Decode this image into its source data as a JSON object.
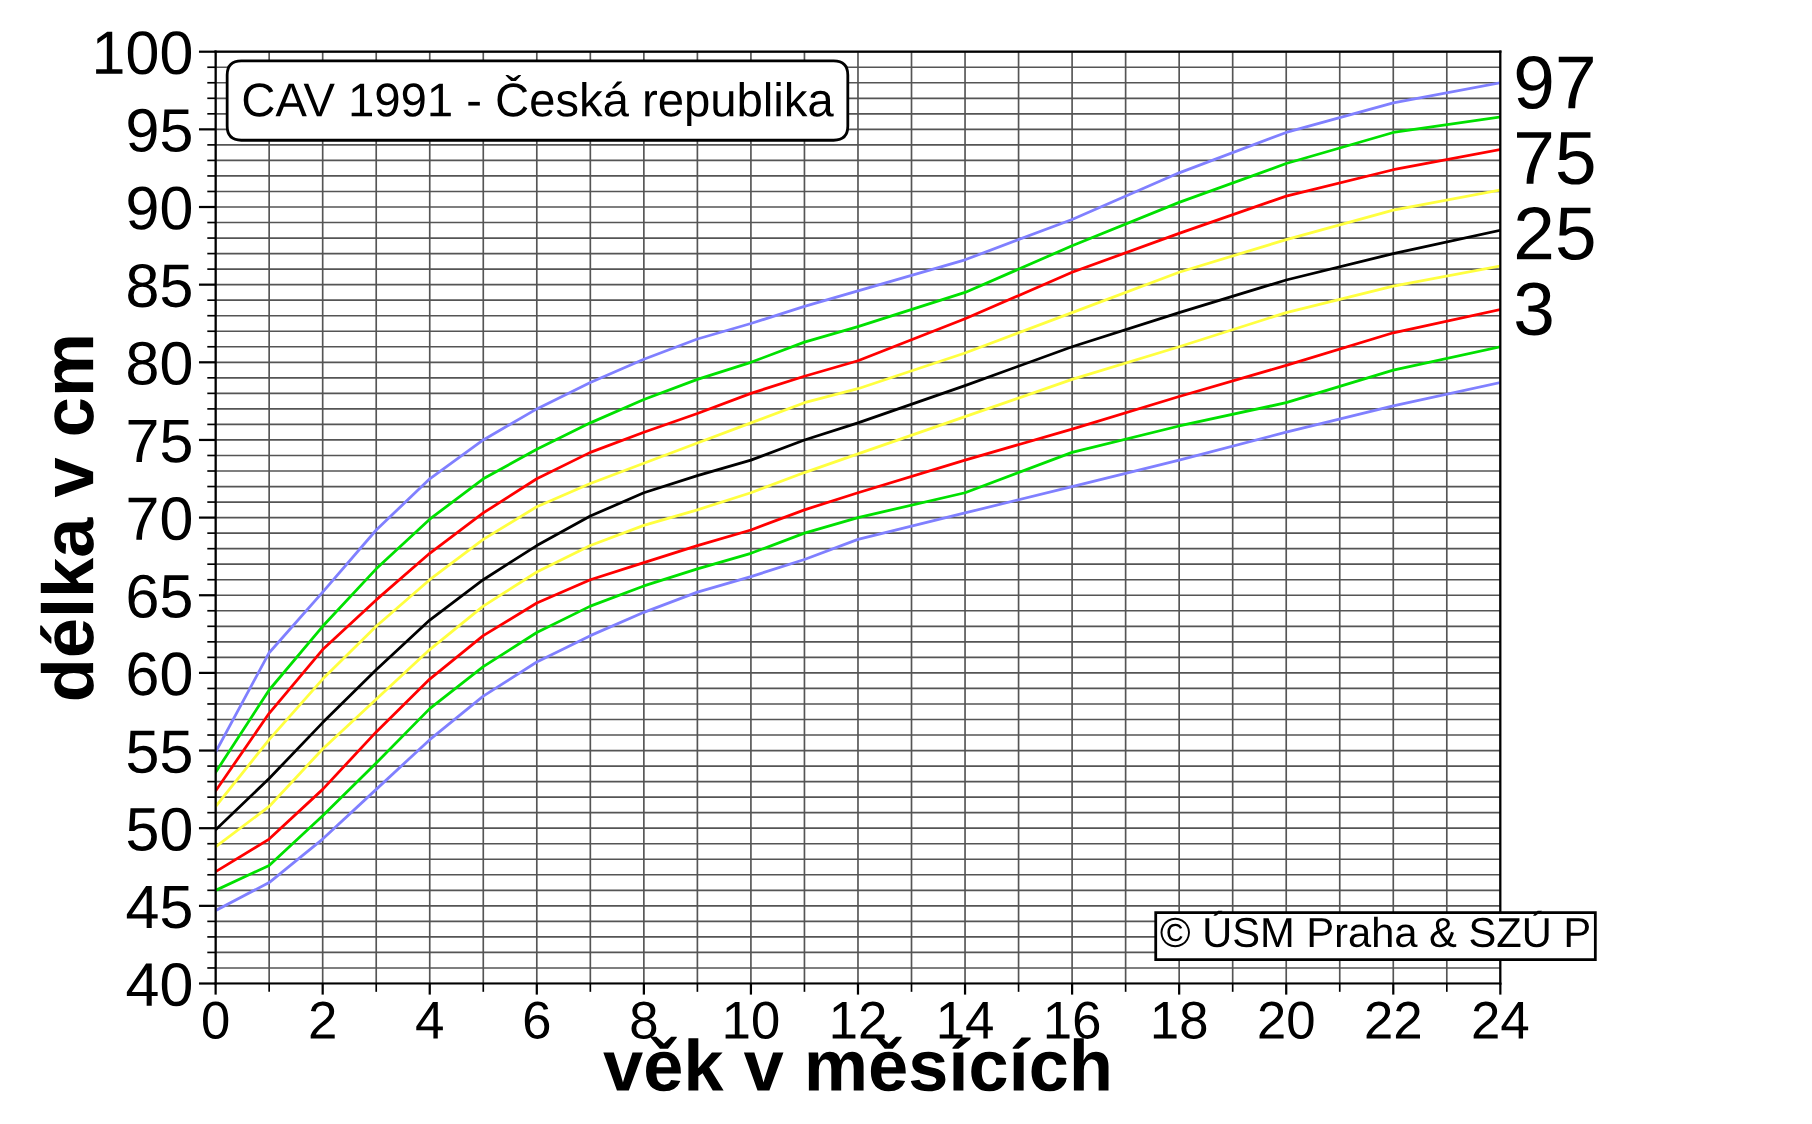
{
  "chart_data": {
    "type": "line",
    "title": "CAV 1991 - Česká republika",
    "xlabel": "věk v měsících",
    "ylabel": "délka v cm",
    "x": [
      0,
      1,
      2,
      3,
      4,
      5,
      6,
      7,
      8,
      9,
      10,
      11,
      12,
      14,
      16,
      18,
      20,
      22,
      24
    ],
    "series": [
      {
        "color": "#8080ff",
        "values": [
          54.9,
          61.3,
          65.2,
          69.2,
          72.5,
          75.0,
          77.0,
          78.7,
          80.2,
          81.5,
          82.5,
          83.6,
          84.6,
          86.6,
          89.2,
          92.2,
          94.8,
          96.7,
          98.0
        ]
      },
      {
        "color": "#00e000",
        "values": [
          53.6,
          58.9,
          63.0,
          66.7,
          69.9,
          72.5,
          74.4,
          76.1,
          77.6,
          78.9,
          80.0,
          81.3,
          82.3,
          84.5,
          87.5,
          90.3,
          92.8,
          94.8,
          95.8
        ]
      },
      {
        "color": "#ff0000",
        "values": [
          52.4,
          57.4,
          61.5,
          64.7,
          67.7,
          70.3,
          72.5,
          74.2,
          75.5,
          76.7,
          78.0,
          79.1,
          80.1,
          82.8,
          85.8,
          88.3,
          90.7,
          92.4,
          93.7
        ]
      },
      {
        "color": "#ffff40",
        "values": [
          51.4,
          55.7,
          59.6,
          63.0,
          66.0,
          68.6,
          70.7,
          72.2,
          73.5,
          74.8,
          76.1,
          77.4,
          78.3,
          80.6,
          83.2,
          85.8,
          87.9,
          89.8,
          91.1
        ]
      },
      {
        "color": "#000000",
        "values": [
          49.9,
          53.2,
          56.8,
          60.2,
          63.4,
          66.0,
          68.2,
          70.1,
          71.6,
          72.7,
          73.7,
          75.0,
          76.1,
          78.5,
          81.0,
          83.2,
          85.3,
          87.0,
          88.5
        ]
      },
      {
        "color": "#ffff40",
        "values": [
          48.8,
          51.4,
          55.1,
          58.3,
          61.5,
          64.3,
          66.5,
          68.2,
          69.5,
          70.5,
          71.6,
          72.9,
          74.1,
          76.5,
          78.9,
          81.0,
          83.2,
          84.9,
          86.2
        ]
      },
      {
        "color": "#ff0000",
        "values": [
          47.2,
          49.3,
          52.5,
          56.2,
          59.6,
          62.4,
          64.5,
          66.0,
          67.1,
          68.2,
          69.2,
          70.5,
          71.6,
          73.7,
          75.7,
          77.8,
          79.8,
          81.9,
          83.4
        ]
      },
      {
        "color": "#00e000",
        "values": [
          46.0,
          47.6,
          50.8,
          54.2,
          57.7,
          60.4,
          62.6,
          64.3,
          65.6,
          66.7,
          67.7,
          69.0,
          70.0,
          71.6,
          74.2,
          75.9,
          77.4,
          79.5,
          81.0
        ]
      },
      {
        "color": "#8080ff",
        "values": [
          44.7,
          46.5,
          49.3,
          52.5,
          55.7,
          58.5,
          60.7,
          62.4,
          63.9,
          65.2,
          66.2,
          67.3,
          68.6,
          70.3,
          72.0,
          73.7,
          75.5,
          77.2,
          78.7
        ]
      }
    ],
    "annotations": [
      "97",
      "75",
      "25",
      "3",
      "© ÚSM Praha & SZÚ P"
    ],
    "xlim": [
      0,
      24
    ],
    "xticks": [
      0,
      2,
      4,
      6,
      8,
      10,
      12,
      14,
      16,
      18,
      20,
      22,
      24
    ],
    "ylim": [
      40,
      100
    ],
    "yticks": [
      40,
      45,
      50,
      55,
      60,
      65,
      70,
      75,
      80,
      85,
      90,
      95,
      100
    ],
    "grid": true,
    "legend": false,
    "marker": "none",
    "line_style": "solid"
  }
}
